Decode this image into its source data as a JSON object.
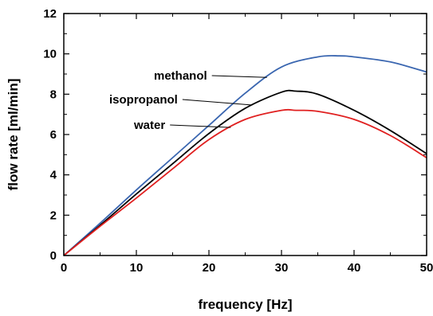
{
  "chart_data": {
    "type": "line",
    "title": "",
    "xlabel": "frequency [Hz]",
    "ylabel": "flow rate [ml/min]",
    "xlim": [
      0,
      50
    ],
    "ylim": [
      0,
      12
    ],
    "xticks": [
      0,
      10,
      20,
      30,
      40,
      50
    ],
    "yticks": [
      0,
      2,
      4,
      6,
      8,
      10,
      12
    ],
    "grid": false,
    "legend": "inline annotations with leader lines",
    "series": [
      {
        "name": "methanol",
        "color": "#3a66b0",
        "x": [
          0,
          5,
          10,
          15,
          20,
          25,
          30,
          35,
          38,
          40,
          45,
          50
        ],
        "y": [
          0,
          1.6,
          3.25,
          4.85,
          6.45,
          8.05,
          9.35,
          9.85,
          9.9,
          9.85,
          9.6,
          9.1
        ]
      },
      {
        "name": "isopropanol",
        "color": "#000000",
        "x": [
          0,
          5,
          10,
          15,
          20,
          25,
          30,
          32,
          35,
          40,
          45,
          50
        ],
        "y": [
          0,
          1.5,
          3.05,
          4.55,
          6.05,
          7.3,
          8.1,
          8.15,
          8.0,
          7.2,
          6.2,
          5.05
        ]
      },
      {
        "name": "water",
        "color": "#e02020",
        "x": [
          0,
          5,
          10,
          15,
          20,
          25,
          30,
          32,
          35,
          40,
          45,
          50
        ],
        "y": [
          0,
          1.45,
          2.85,
          4.3,
          5.75,
          6.75,
          7.2,
          7.2,
          7.15,
          6.75,
          5.95,
          4.85
        ]
      }
    ],
    "annotations": [
      {
        "text": "methanol",
        "series": "methanol",
        "at_x": 28
      },
      {
        "text": "isopropanol",
        "series": "isopropanol",
        "at_x": 26
      },
      {
        "text": "water",
        "series": "water",
        "at_x": 23
      }
    ]
  }
}
